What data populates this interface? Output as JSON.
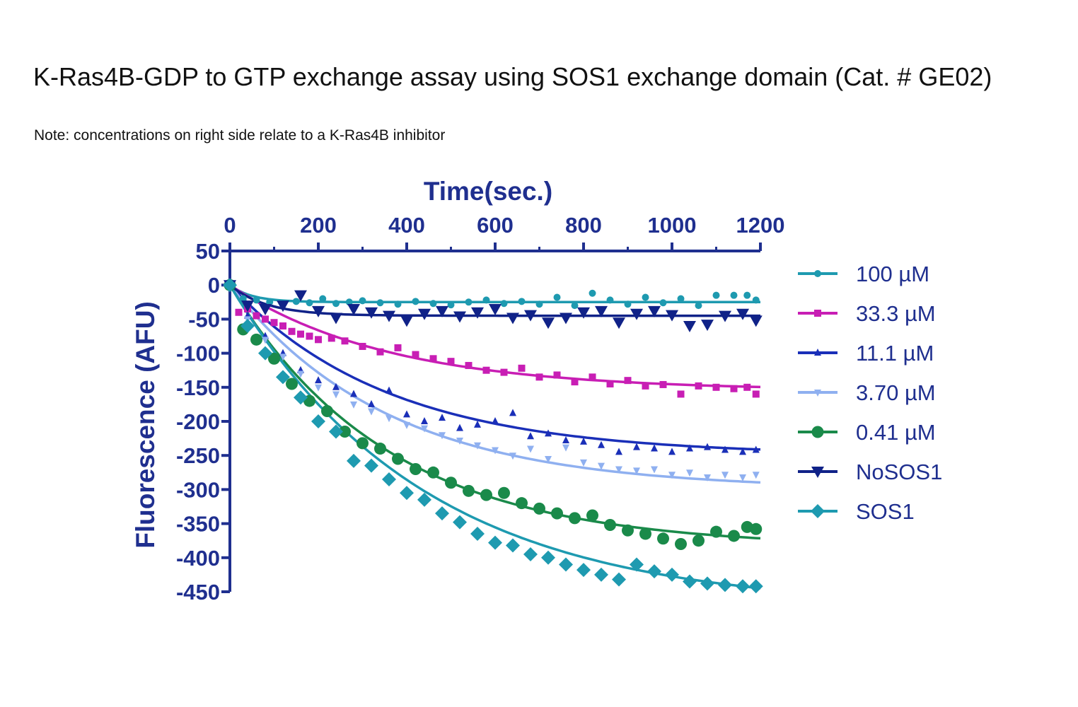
{
  "header": {
    "title": "K-Ras4B-GDP to GTP exchange assay using SOS1 exchange domain (Cat. # GE02)",
    "note": "Note: concentrations on right side relate to a K-Ras4B inhibitor"
  },
  "chart_data": {
    "type": "scatter",
    "title": "",
    "xlabel": "Time(sec.)",
    "ylabel": "Fluorescence (AFU)",
    "xlim": [
      0,
      1200
    ],
    "ylim": [
      -450,
      50
    ],
    "x_ticks": [
      0,
      200,
      400,
      600,
      800,
      1000,
      1200
    ],
    "y_ticks": [
      50,
      0,
      -50,
      -100,
      -150,
      -200,
      -250,
      -300,
      -350,
      -400,
      -450
    ],
    "x_axis_position": "top",
    "legend_position": "right",
    "series": [
      {
        "name": "100 µM",
        "color": "#1e9ab0",
        "marker": "circle-small",
        "fit_plateau": -25,
        "fit_k": 0.02,
        "x": [
          0,
          30,
          60,
          90,
          120,
          150,
          180,
          210,
          240,
          270,
          300,
          340,
          380,
          420,
          460,
          500,
          540,
          580,
          620,
          660,
          700,
          740,
          780,
          820,
          860,
          900,
          940,
          980,
          1020,
          1060,
          1100,
          1140,
          1170,
          1190
        ],
        "y": [
          0,
          -20,
          -22,
          -25,
          -28,
          -24,
          -26,
          -20,
          -27,
          -25,
          -23,
          -26,
          -28,
          -24,
          -27,
          -29,
          -25,
          -22,
          -27,
          -24,
          -28,
          -18,
          -30,
          -12,
          -22,
          -28,
          -18,
          -26,
          -20,
          -30,
          -15,
          -15,
          -15,
          -22
        ]
      },
      {
        "name": "33.3 µM",
        "color": "#c81eb4",
        "marker": "square",
        "fit_plateau": -155,
        "fit_k": 0.0028,
        "x": [
          0,
          20,
          40,
          60,
          80,
          100,
          120,
          140,
          160,
          180,
          200,
          230,
          260,
          300,
          340,
          380,
          420,
          460,
          500,
          540,
          580,
          620,
          660,
          700,
          740,
          780,
          820,
          860,
          900,
          940,
          980,
          1020,
          1060,
          1100,
          1140,
          1170,
          1190
        ],
        "y": [
          0,
          -40,
          -35,
          -45,
          -50,
          -55,
          -60,
          -68,
          -72,
          -75,
          -80,
          -78,
          -82,
          -90,
          -98,
          -92,
          -102,
          -108,
          -112,
          -118,
          -125,
          -128,
          -122,
          -135,
          -132,
          -142,
          -135,
          -145,
          -140,
          -148,
          -146,
          -160,
          -148,
          -150,
          -152,
          -150,
          -160
        ]
      },
      {
        "name": "11.1 µM",
        "color": "#1a2fb8",
        "marker": "triangle-up",
        "fit_plateau": -250,
        "fit_k": 0.0028,
        "x": [
          0,
          40,
          80,
          120,
          160,
          200,
          240,
          280,
          320,
          360,
          400,
          440,
          480,
          520,
          560,
          600,
          640,
          680,
          720,
          760,
          800,
          840,
          880,
          920,
          960,
          1000,
          1040,
          1080,
          1120,
          1160,
          1190
        ],
        "y": [
          0,
          -45,
          -75,
          -100,
          -125,
          -140,
          -150,
          -160,
          -175,
          -155,
          -190,
          -200,
          -195,
          -210,
          -205,
          -200,
          -188,
          -222,
          -218,
          -228,
          -230,
          -235,
          -245,
          -238,
          -240,
          -245,
          -240,
          -238,
          -242,
          -245,
          -242
        ]
      },
      {
        "name": "3.70 µM",
        "color": "#8fb0f0",
        "marker": "triangle-down",
        "fit_plateau": -300,
        "fit_k": 0.0028,
        "x": [
          0,
          40,
          80,
          120,
          160,
          200,
          240,
          280,
          320,
          360,
          400,
          440,
          480,
          520,
          560,
          600,
          640,
          680,
          720,
          760,
          800,
          840,
          880,
          920,
          960,
          1000,
          1040,
          1080,
          1120,
          1160,
          1190
        ],
        "y": [
          0,
          -50,
          -80,
          -105,
          -130,
          -150,
          -160,
          -175,
          -185,
          -195,
          -205,
          -210,
          -220,
          -228,
          -235,
          -242,
          -250,
          -240,
          -255,
          -238,
          -260,
          -265,
          -270,
          -272,
          -270,
          -278,
          -275,
          -282,
          -278,
          -282,
          -278
        ]
      },
      {
        "name": "0.41 µM",
        "color": "#1a8a4a",
        "marker": "circle",
        "fit_plateau": -385,
        "fit_k": 0.0028,
        "x": [
          0,
          30,
          60,
          100,
          140,
          180,
          220,
          260,
          300,
          340,
          380,
          420,
          460,
          500,
          540,
          580,
          620,
          660,
          700,
          740,
          780,
          820,
          860,
          900,
          940,
          980,
          1020,
          1060,
          1100,
          1140,
          1170,
          1190
        ],
        "y": [
          0,
          -65,
          -80,
          -108,
          -145,
          -170,
          -185,
          -215,
          -232,
          -240,
          -255,
          -270,
          -275,
          -290,
          -302,
          -308,
          -305,
          -320,
          -328,
          -335,
          -342,
          -338,
          -352,
          -360,
          -365,
          -372,
          -380,
          -375,
          -362,
          -368,
          -355,
          -358
        ]
      },
      {
        "name": "NoSOS1",
        "color": "#102288",
        "marker": "triangle-down-large",
        "fit_plateau": -45,
        "fit_k": 0.012,
        "x": [
          0,
          40,
          80,
          120,
          160,
          200,
          240,
          280,
          320,
          360,
          400,
          440,
          480,
          520,
          560,
          600,
          640,
          680,
          720,
          760,
          800,
          840,
          880,
          920,
          960,
          1000,
          1040,
          1080,
          1120,
          1160,
          1190
        ],
        "y": [
          0,
          -30,
          -35,
          -30,
          -15,
          -38,
          -48,
          -35,
          -40,
          -45,
          -52,
          -42,
          -38,
          -46,
          -40,
          -35,
          -48,
          -44,
          -55,
          -48,
          -40,
          -38,
          -55,
          -42,
          -38,
          -44,
          -60,
          -58,
          -45,
          -42,
          -52
        ]
      },
      {
        "name": "SOS1",
        "color": "#1e9ab0",
        "marker": "diamond",
        "fit_plateau": -475,
        "fit_k": 0.0023,
        "x": [
          0,
          40,
          80,
          120,
          160,
          200,
          240,
          280,
          320,
          360,
          400,
          440,
          480,
          520,
          560,
          600,
          640,
          680,
          720,
          760,
          800,
          840,
          880,
          920,
          960,
          1000,
          1040,
          1080,
          1120,
          1160,
          1190
        ],
        "y": [
          0,
          -60,
          -100,
          -135,
          -165,
          -200,
          -215,
          -258,
          -265,
          -285,
          -305,
          -315,
          -335,
          -348,
          -365,
          -378,
          -382,
          -395,
          -400,
          -410,
          -418,
          -425,
          -432,
          -410,
          -420,
          -425,
          -435,
          -438,
          -440,
          -442,
          -442
        ]
      }
    ]
  }
}
